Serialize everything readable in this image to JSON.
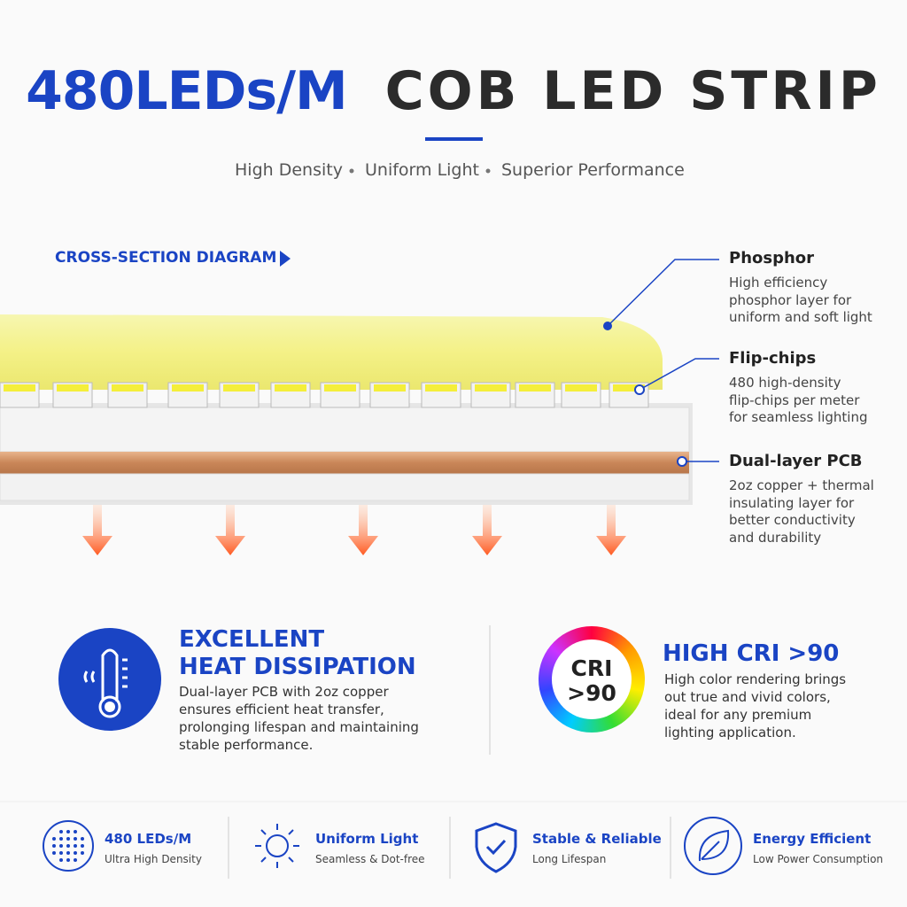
{
  "header": {
    "title_accent": "480LEDs/M",
    "title": "COB LED STRIP",
    "subtitle_items": [
      "High Density",
      "Uniform Light",
      "Superior Performance"
    ]
  },
  "diagram": {
    "label": "CROSS-SECTION DIAGRAM",
    "callouts": [
      {
        "title": "Phosphor",
        "lines": [
          "High efficiency",
          "phosphor layer for",
          "uniform and soft light"
        ]
      },
      {
        "title": "Flip-chips",
        "lines": [
          "480 high-density",
          "flip-chips per meter",
          "for seamless lighting"
        ]
      },
      {
        "title": "Dual-layer PCB",
        "lines": [
          "2oz copper + thermal",
          "insulating layer for",
          "better conductivity",
          "and durability"
        ]
      }
    ]
  },
  "features": [
    {
      "title_lines": [
        "EXCELLENT",
        "HEAT DISSIPATION"
      ],
      "lines": [
        "Dual-layer PCB with 2oz copper",
        "ensures efficient heat transfer,",
        "prolonging lifespan and maintaining",
        "stable performance."
      ]
    },
    {
      "badge_lines": [
        "CRI",
        ">90"
      ],
      "title_lines": [
        "HIGH CRI >90"
      ],
      "lines": [
        "High color rendering brings",
        "out true and vivid colors,",
        "ideal for any premium",
        "lighting application."
      ]
    }
  ],
  "bottom": [
    {
      "title": "480 LEDs/M",
      "subtitle": "Ultra High Density"
    },
    {
      "title": "Uniform Light",
      "subtitle": "Seamless & Dot-free"
    },
    {
      "title": "Stable & Reliable",
      "subtitle": "Long Lifespan"
    },
    {
      "title": "Energy Efficient",
      "subtitle": "Low Power Consumption"
    }
  ]
}
